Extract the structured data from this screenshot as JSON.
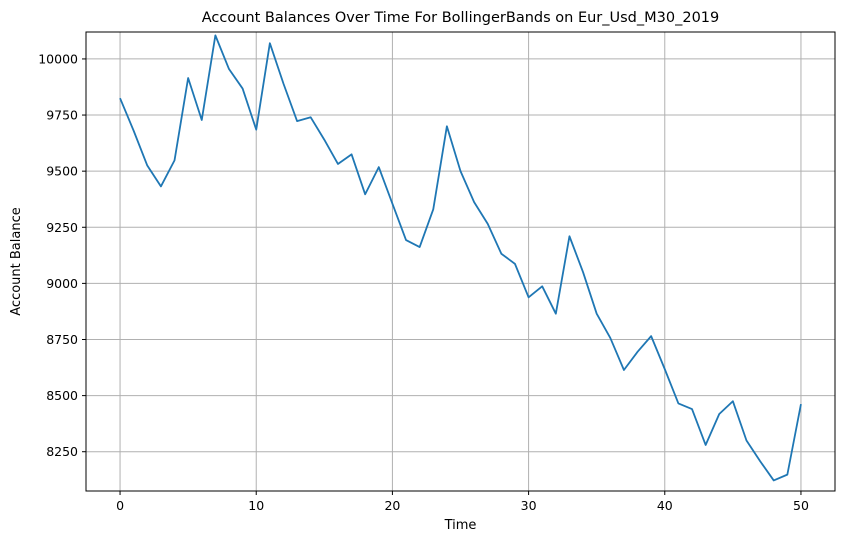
{
  "chart_data": {
    "type": "line",
    "title": "Account Balances Over Time For BollingerBands on Eur_Usd_M30_2019",
    "xlabel": "Time",
    "ylabel": "Account Balance",
    "xlim": [
      -2.5,
      52.5
    ],
    "ylim": [
      8075,
      10120
    ],
    "xticks": [
      0,
      10,
      20,
      30,
      40,
      50
    ],
    "xtick_labels": [
      "0",
      "10",
      "20",
      "30",
      "40",
      "50"
    ],
    "yticks": [
      8250,
      8500,
      8750,
      9000,
      9250,
      9500,
      9750,
      10000
    ],
    "ytick_labels": [
      "8250",
      "8500",
      "8750",
      "9000",
      "9250",
      "9500",
      "9750",
      "10000"
    ],
    "grid": true,
    "color": "#1f77b4",
    "x": [
      0,
      1,
      2,
      3,
      4,
      5,
      6,
      7,
      8,
      9,
      10,
      11,
      12,
      13,
      14,
      15,
      16,
      17,
      18,
      19,
      20,
      21,
      22,
      23,
      24,
      25,
      26,
      27,
      28,
      29,
      30,
      31,
      32,
      33,
      34,
      35,
      36,
      37,
      38,
      39,
      40,
      41,
      42,
      43,
      44,
      45,
      46,
      47,
      48,
      49,
      50
    ],
    "series": [
      {
        "values": [
          9825,
          9680,
          9525,
          9432,
          9548,
          9915,
          9728,
          10105,
          9955,
          9868,
          9685,
          10070,
          9890,
          9723,
          9740,
          9640,
          9532,
          9575,
          9397,
          9518,
          9355,
          9193,
          9162,
          9330,
          9700,
          9500,
          9362,
          9265,
          9132,
          9087,
          8938,
          8987,
          8865,
          9210,
          9050,
          8865,
          8757,
          8614,
          8695,
          8765,
          8618,
          8465,
          8440,
          8280,
          8418,
          8475,
          8300,
          8208,
          8122,
          8148,
          8462
        ]
      }
    ]
  }
}
